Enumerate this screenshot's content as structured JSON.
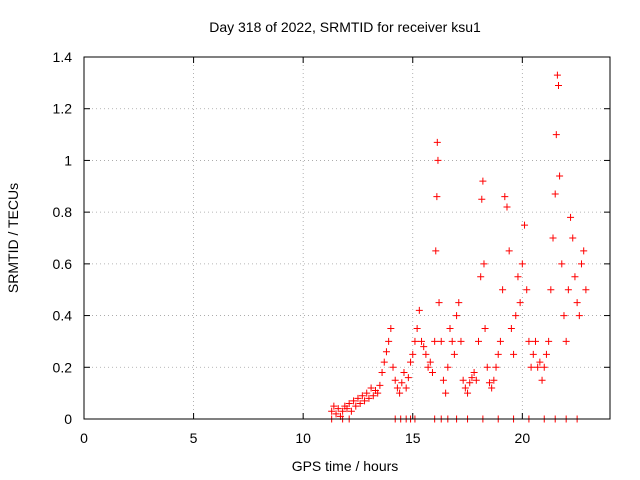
{
  "chart_data": {
    "type": "scatter",
    "title": "Day 318 of 2022, SRMTID for receiver ksu1",
    "xlabel": "GPS time / hours",
    "ylabel": "SRMTID / TECUs",
    "xlim": [
      0,
      24
    ],
    "ylim": [
      0,
      1.4
    ],
    "grid": true,
    "marker": "+",
    "color": "#ff0000",
    "x_ticks": [
      0,
      5,
      10,
      15,
      20
    ],
    "x_tick_labels": [
      "0",
      "5",
      "10",
      "15",
      "20"
    ],
    "y_ticks": [
      0,
      0.2,
      0.4,
      0.6,
      0.8,
      1.0,
      1.2,
      1.4
    ],
    "y_tick_labels": [
      "0",
      "0.2",
      "0.4",
      "0.6",
      "0.8",
      "1",
      "1.2",
      "1.4"
    ],
    "series": [
      {
        "name": "SRMTID",
        "points": [
          [
            11.3,
            0.03
          ],
          [
            11.4,
            0.05
          ],
          [
            11.5,
            0.02
          ],
          [
            11.6,
            0.04
          ],
          [
            11.7,
            0.01
          ],
          [
            11.8,
            0.03
          ],
          [
            11.9,
            0.05
          ],
          [
            12.0,
            0.04
          ],
          [
            12.1,
            0.06
          ],
          [
            12.2,
            0.03
          ],
          [
            12.3,
            0.07
          ],
          [
            12.4,
            0.05
          ],
          [
            12.5,
            0.08
          ],
          [
            12.6,
            0.06
          ],
          [
            12.7,
            0.09
          ],
          [
            12.8,
            0.07
          ],
          [
            12.9,
            0.1
          ],
          [
            13.0,
            0.08
          ],
          [
            13.1,
            0.12
          ],
          [
            13.2,
            0.09
          ],
          [
            13.3,
            0.11
          ],
          [
            13.4,
            0.1
          ],
          [
            13.5,
            0.13
          ],
          [
            13.6,
            0.18
          ],
          [
            13.7,
            0.22
          ],
          [
            13.8,
            0.26
          ],
          [
            13.9,
            0.3
          ],
          [
            14.0,
            0.35
          ],
          [
            14.1,
            0.2
          ],
          [
            14.2,
            0.15
          ],
          [
            14.3,
            0.12
          ],
          [
            14.4,
            0.1
          ],
          [
            14.5,
            0.14
          ],
          [
            14.6,
            0.18
          ],
          [
            14.7,
            0.12
          ],
          [
            14.8,
            0.16
          ],
          [
            14.9,
            0.22
          ],
          [
            15.0,
            0.25
          ],
          [
            15.1,
            0.3
          ],
          [
            15.2,
            0.35
          ],
          [
            15.3,
            0.42
          ],
          [
            15.4,
            0.3
          ],
          [
            15.5,
            0.28
          ],
          [
            15.6,
            0.25
          ],
          [
            15.7,
            0.2
          ],
          [
            15.8,
            0.22
          ],
          [
            15.9,
            0.18
          ],
          [
            16.0,
            0.3
          ],
          [
            16.05,
            0.65
          ],
          [
            16.1,
            0.86
          ],
          [
            16.12,
            1.07
          ],
          [
            16.15,
            1.0
          ],
          [
            16.2,
            0.45
          ],
          [
            16.3,
            0.3
          ],
          [
            16.4,
            0.15
          ],
          [
            16.5,
            0.1
          ],
          [
            16.6,
            0.2
          ],
          [
            16.7,
            0.35
          ],
          [
            16.8,
            0.3
          ],
          [
            16.9,
            0.25
          ],
          [
            17.0,
            0.4
          ],
          [
            17.1,
            0.45
          ],
          [
            17.2,
            0.3
          ],
          [
            17.3,
            0.15
          ],
          [
            17.4,
            0.12
          ],
          [
            17.5,
            0.1
          ],
          [
            17.6,
            0.14
          ],
          [
            17.7,
            0.16
          ],
          [
            17.8,
            0.18
          ],
          [
            17.9,
            0.15
          ],
          [
            18.0,
            0.3
          ],
          [
            18.1,
            0.55
          ],
          [
            18.15,
            0.85
          ],
          [
            18.2,
            0.92
          ],
          [
            18.25,
            0.6
          ],
          [
            18.3,
            0.35
          ],
          [
            18.4,
            0.2
          ],
          [
            18.5,
            0.14
          ],
          [
            18.6,
            0.12
          ],
          [
            18.7,
            0.15
          ],
          [
            18.8,
            0.2
          ],
          [
            18.9,
            0.25
          ],
          [
            19.0,
            0.3
          ],
          [
            19.1,
            0.5
          ],
          [
            19.2,
            0.86
          ],
          [
            19.3,
            0.82
          ],
          [
            19.4,
            0.65
          ],
          [
            19.5,
            0.35
          ],
          [
            19.6,
            0.25
          ],
          [
            19.7,
            0.4
          ],
          [
            19.8,
            0.55
          ],
          [
            19.9,
            0.45
          ],
          [
            20.0,
            0.6
          ],
          [
            20.1,
            0.75
          ],
          [
            20.2,
            0.5
          ],
          [
            20.3,
            0.3
          ],
          [
            20.4,
            0.2
          ],
          [
            20.5,
            0.25
          ],
          [
            20.6,
            0.3
          ],
          [
            20.7,
            0.2
          ],
          [
            20.8,
            0.22
          ],
          [
            20.9,
            0.15
          ],
          [
            21.0,
            0.2
          ],
          [
            21.1,
            0.25
          ],
          [
            21.2,
            0.3
          ],
          [
            21.3,
            0.5
          ],
          [
            21.4,
            0.7
          ],
          [
            21.5,
            0.87
          ],
          [
            21.55,
            1.1
          ],
          [
            21.6,
            1.33
          ],
          [
            21.65,
            1.29
          ],
          [
            21.7,
            0.94
          ],
          [
            21.8,
            0.6
          ],
          [
            21.9,
            0.4
          ],
          [
            22.0,
            0.3
          ],
          [
            22.1,
            0.5
          ],
          [
            22.2,
            0.78
          ],
          [
            22.3,
            0.7
          ],
          [
            22.4,
            0.55
          ],
          [
            22.5,
            0.45
          ],
          [
            22.6,
            0.4
          ],
          [
            22.7,
            0.6
          ],
          [
            22.8,
            0.65
          ],
          [
            22.9,
            0.5
          ],
          [
            11.3,
            0.0
          ],
          [
            11.8,
            0.0
          ],
          [
            12.1,
            0.0
          ],
          [
            14.2,
            0.0
          ],
          [
            14.45,
            0.0
          ],
          [
            14.7,
            0.0
          ],
          [
            14.9,
            0.0
          ],
          [
            15.1,
            0.0
          ],
          [
            16.0,
            0.0
          ],
          [
            16.3,
            0.0
          ],
          [
            16.6,
            0.0
          ],
          [
            17.0,
            0.0
          ],
          [
            17.5,
            0.0
          ],
          [
            18.2,
            0.0
          ],
          [
            18.9,
            0.0
          ],
          [
            19.6,
            0.0
          ],
          [
            20.3,
            0.0
          ],
          [
            21.0,
            0.0
          ],
          [
            21.5,
            0.0
          ],
          [
            22.0,
            0.0
          ],
          [
            22.5,
            0.0
          ]
        ]
      }
    ]
  }
}
